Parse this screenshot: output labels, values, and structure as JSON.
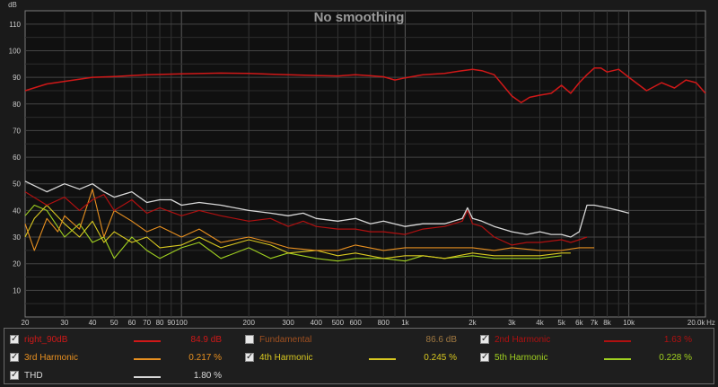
{
  "chart_data": {
    "type": "line",
    "title": "No smoothing",
    "ylabel": "dB",
    "x_unit_label": "Hz",
    "x_scale": "log",
    "xlim": [
      20,
      22000
    ],
    "ylim": [
      0,
      115
    ],
    "grid": true,
    "y_ticks": [
      10,
      20,
      30,
      40,
      50,
      60,
      70,
      80,
      90,
      100,
      110
    ],
    "x_ticks": [
      {
        "v": 20,
        "label": "20"
      },
      {
        "v": 30,
        "label": "30"
      },
      {
        "v": 40,
        "label": "40"
      },
      {
        "v": 50,
        "label": "50"
      },
      {
        "v": 60,
        "label": "60"
      },
      {
        "v": 70,
        "label": "70"
      },
      {
        "v": 80,
        "label": "80"
      },
      {
        "v": 90,
        "label": "90"
      },
      {
        "v": 100,
        "label": "100"
      },
      {
        "v": 200,
        "label": "200"
      },
      {
        "v": 300,
        "label": "300"
      },
      {
        "v": 400,
        "label": "400"
      },
      {
        "v": 500,
        "label": "500"
      },
      {
        "v": 600,
        "label": "600"
      },
      {
        "v": 800,
        "label": "800"
      },
      {
        "v": 1000,
        "label": "1k"
      },
      {
        "v": 2000,
        "label": "2k"
      },
      {
        "v": 3000,
        "label": "3k"
      },
      {
        "v": 4000,
        "label": "4k"
      },
      {
        "v": 5000,
        "label": "5k"
      },
      {
        "v": 6000,
        "label": "6k"
      },
      {
        "v": 7000,
        "label": "7k"
      },
      {
        "v": 8000,
        "label": "8k"
      },
      {
        "v": 10000,
        "label": "10k"
      },
      {
        "v": 20000,
        "label": "20.0k"
      }
    ],
    "series": [
      {
        "name": "right_90dB",
        "color": "#d01818",
        "width": 1.5,
        "x": [
          20,
          25,
          30,
          40,
          50,
          70,
          100,
          150,
          200,
          250,
          300,
          400,
          500,
          600,
          700,
          800,
          900,
          1000,
          1200,
          1500,
          1800,
          2000,
          2200,
          2500,
          2800,
          3000,
          3300,
          3600,
          4000,
          4500,
          5000,
          5500,
          6000,
          6500,
          7000,
          7500,
          8000,
          9000,
          10000,
          12000,
          14000,
          16000,
          18000,
          20000,
          22000
        ],
        "y": [
          85,
          87.5,
          88.5,
          90,
          90.3,
          91,
          91.3,
          91.6,
          91.5,
          91.2,
          91,
          90.7,
          90.5,
          91,
          90.6,
          90.2,
          89,
          89.8,
          91,
          91.5,
          92.5,
          93,
          92.5,
          91,
          86,
          83,
          80.5,
          82.5,
          83.3,
          84,
          87,
          84,
          88,
          91,
          93.5,
          93.5,
          92,
          93,
          90,
          85,
          88,
          86,
          89,
          88,
          84
        ]
      },
      {
        "name": "2nd Harmonic",
        "color": "#b01010",
        "width": 1.2,
        "x": [
          20,
          25,
          30,
          35,
          40,
          45,
          50,
          60,
          70,
          80,
          100,
          120,
          150,
          200,
          250,
          300,
          350,
          400,
          500,
          600,
          700,
          800,
          1000,
          1200,
          1500,
          1800,
          1900,
          2000,
          2200,
          2500,
          3000,
          3500,
          4000,
          5000,
          5500,
          6000,
          6500
        ],
        "y": [
          47,
          42,
          45,
          40,
          44,
          46,
          40,
          44,
          39,
          41,
          38,
          40,
          38,
          36,
          37,
          34,
          36,
          34,
          33,
          33,
          32,
          32,
          31,
          33,
          34,
          36,
          40,
          35,
          34,
          30,
          27,
          28,
          28,
          29,
          28,
          29,
          30
        ]
      },
      {
        "name": "3rd Harmonic",
        "color": "#e89020",
        "width": 1.1,
        "x": [
          20,
          22,
          25,
          28,
          30,
          35,
          40,
          45,
          50,
          60,
          70,
          80,
          100,
          120,
          150,
          200,
          250,
          300,
          400,
          500,
          600,
          800,
          1000,
          1200,
          1500,
          2000,
          2500,
          3000,
          4000,
          5000,
          6000,
          7000
        ],
        "y": [
          35,
          25,
          37,
          32,
          38,
          33,
          48,
          30,
          40,
          36,
          32,
          34,
          30,
          33,
          28,
          30,
          28,
          26,
          25,
          25,
          27,
          25,
          26,
          26,
          26,
          26,
          25,
          26,
          25,
          25,
          26,
          26
        ]
      },
      {
        "name": "4th Harmonic",
        "color": "#d8c820",
        "width": 1.1,
        "x": [
          20,
          22,
          25,
          30,
          35,
          40,
          45,
          50,
          60,
          70,
          80,
          100,
          120,
          150,
          200,
          250,
          300,
          400,
          500,
          600,
          800,
          1000,
          1200,
          1500,
          2000,
          2500,
          3000,
          4000,
          5000,
          5500
        ],
        "y": [
          30,
          37,
          42,
          35,
          30,
          36,
          28,
          32,
          28,
          30,
          26,
          27,
          30,
          26,
          29,
          27,
          24,
          25,
          23,
          24,
          22,
          23,
          23,
          22,
          24,
          23,
          23,
          23,
          24,
          24
        ]
      },
      {
        "name": "5th Harmonic",
        "color": "#a0d020",
        "width": 1.1,
        "x": [
          20,
          22,
          25,
          30,
          35,
          40,
          45,
          50,
          60,
          70,
          80,
          100,
          120,
          150,
          200,
          250,
          300,
          400,
          500,
          600,
          800,
          1000,
          1200,
          1500,
          2000,
          2500,
          3000,
          4000,
          5000
        ],
        "y": [
          38,
          42,
          40,
          30,
          35,
          28,
          30,
          22,
          30,
          25,
          22,
          26,
          28,
          22,
          26,
          22,
          24,
          22,
          21,
          22,
          22,
          21,
          23,
          22,
          23,
          22,
          22,
          22,
          23
        ]
      },
      {
        "name": "THD",
        "color": "#d8d8d8",
        "width": 1.3,
        "x": [
          20,
          25,
          30,
          35,
          40,
          45,
          50,
          60,
          70,
          80,
          90,
          100,
          120,
          150,
          200,
          250,
          300,
          350,
          400,
          500,
          600,
          700,
          800,
          1000,
          1200,
          1500,
          1800,
          1900,
          2000,
          2200,
          2500,
          3000,
          3500,
          4000,
          4500,
          5000,
          5500,
          6000,
          6500,
          7000,
          8000,
          9000,
          10000
        ],
        "y": [
          51,
          47,
          50,
          48,
          50,
          47,
          45,
          47,
          43,
          44,
          44,
          42,
          43,
          42,
          40,
          39,
          38,
          39,
          37,
          36,
          37,
          35,
          36,
          34,
          35,
          35,
          37,
          41,
          37,
          36,
          34,
          32,
          31,
          32,
          31,
          31,
          30,
          32,
          42,
          42,
          41,
          40,
          39
        ]
      }
    ]
  },
  "legend": {
    "items": [
      {
        "label": "right_90dB",
        "value": "84.9 dB",
        "checked": true,
        "color": "#d01818"
      },
      {
        "label": "Fundamental",
        "value": "86.6 dB",
        "checked": false,
        "color": "#a05020"
      },
      {
        "label": "2nd Harmonic",
        "value": "1.63 %",
        "checked": true,
        "color": "#b01010"
      },
      {
        "label": "3rd Harmonic",
        "value": "0.217 %",
        "checked": true,
        "color": "#e89020"
      },
      {
        "label": "4th Harmonic",
        "value": "0.245 %",
        "checked": true,
        "color": "#d8c820"
      },
      {
        "label": "5th Harmonic",
        "value": "0.228 %",
        "checked": true,
        "color": "#a0d020"
      },
      {
        "label": "THD",
        "value": "1.80 %",
        "checked": true,
        "color": "#d8d8d8"
      }
    ]
  }
}
